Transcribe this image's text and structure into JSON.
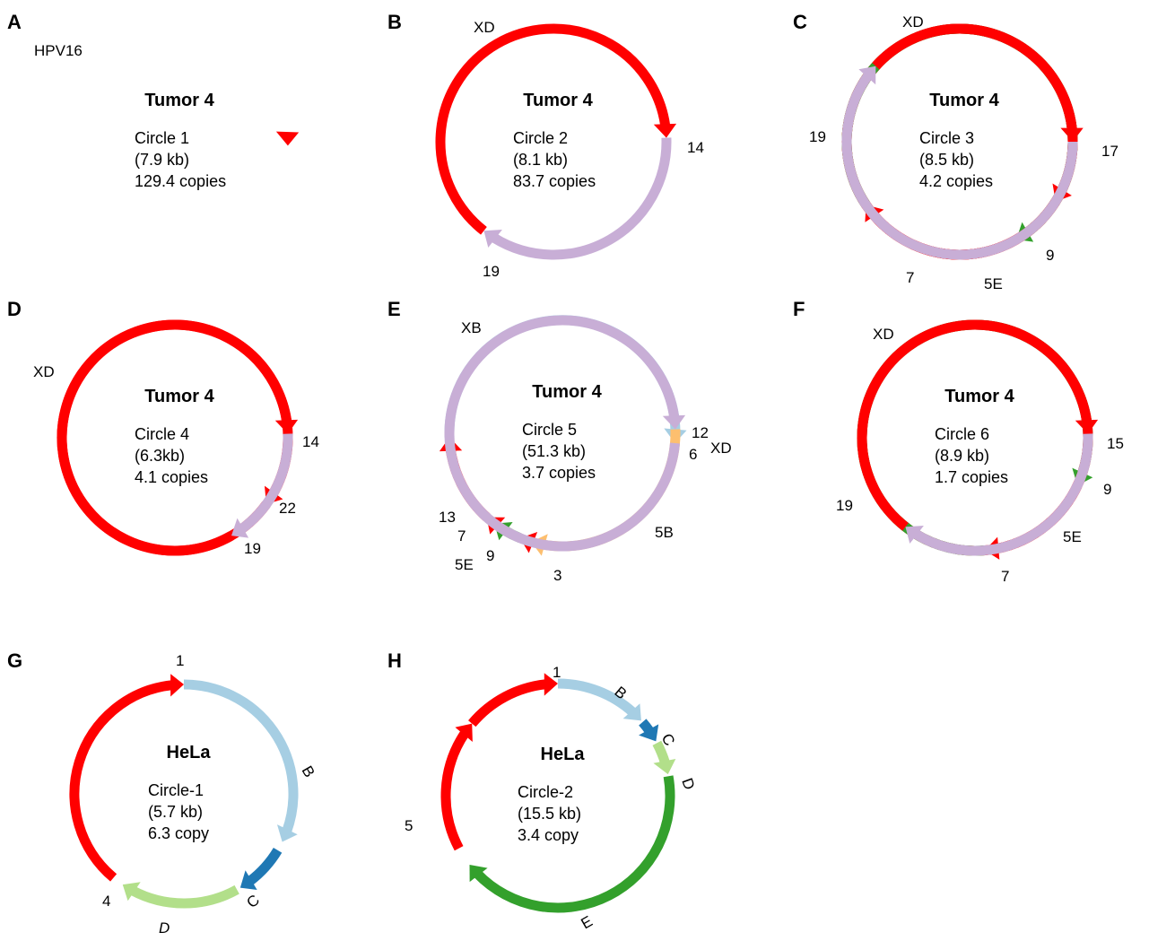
{
  "colors": {
    "red": "#ff0000",
    "lavender": "#c8aed6",
    "green": "#33a02c",
    "orange": "#fdbf6f",
    "light_blue": "#a6cee3",
    "dark_blue": "#1f78b4",
    "light_green": "#b2df8a"
  },
  "panels": [
    {
      "id": "A",
      "letter": "A",
      "title": "Tumor 4",
      "lines": [
        "Circle 1",
        "(7.9 kb)",
        "129.4 copies"
      ],
      "segments": [
        {
          "color": "red",
          "start": 88,
          "end": 92,
          "arrow": true
        }
      ],
      "labels": [
        {
          "text": "HPV16",
          "pos": "top-left"
        }
      ]
    },
    {
      "id": "B",
      "letter": "B",
      "title": "Tumor 4",
      "lines": [
        "Circle 2",
        "(8.1 kb)",
        "83.7 copies"
      ],
      "segments": [
        {
          "color": "red",
          "start": 218,
          "end": 88,
          "arrow": true
        },
        {
          "color": "lavender",
          "start": 88,
          "end": 218,
          "arrow": true
        }
      ],
      "labels": [
        {
          "text": "XD",
          "pos": "top-left"
        },
        {
          "text": "14",
          "pos": "right"
        },
        {
          "text": "19",
          "pos": "bottom-left"
        }
      ]
    },
    {
      "id": "C",
      "letter": "C",
      "title": "Tumor 4",
      "lines": [
        "Circle 3",
        "(8.5 kb)",
        "4.2 copies"
      ],
      "segments": [
        {
          "color": "red",
          "start": 122,
          "end": 90,
          "arrow": true
        },
        {
          "color": "red",
          "start": 150,
          "end": 122,
          "arrow": true
        },
        {
          "color": "green",
          "start": 236,
          "end": 150,
          "arrow": true
        },
        {
          "color": "red",
          "start": 312,
          "end": 236,
          "arrow": true
        },
        {
          "color": "lavender",
          "start": 90,
          "end": 312,
          "arrow": true
        }
      ],
      "labels": [
        {
          "text": "XD",
          "pos": "top"
        },
        {
          "text": "17",
          "pos": "right"
        },
        {
          "text": "9",
          "pos": "right-low"
        },
        {
          "text": "5E",
          "pos": "bottom"
        },
        {
          "text": "7",
          "pos": "bottom-left"
        },
        {
          "text": "19",
          "pos": "left"
        }
      ]
    },
    {
      "id": "D",
      "letter": "D",
      "title": "Tumor 4",
      "lines": [
        "Circle 4",
        "(6.3kb)",
        "4.1 copies"
      ],
      "segments": [
        {
          "color": "red",
          "start": 126,
          "end": 88,
          "arrow": true
        },
        {
          "color": "red",
          "start": 150,
          "end": 126,
          "arrow": true
        },
        {
          "color": "lavender",
          "start": 88,
          "end": 150,
          "arrow": true
        }
      ],
      "labels": [
        {
          "text": "XD",
          "pos": "left"
        },
        {
          "text": "14",
          "pos": "right"
        },
        {
          "text": "22",
          "pos": "right-low"
        },
        {
          "text": "19",
          "pos": "bottom-right"
        }
      ]
    },
    {
      "id": "E",
      "letter": "E",
      "title": "Tumor 4",
      "lines": [
        "Circle 5",
        "(51.3 kb)",
        "3.7 copies"
      ],
      "segments": [
        {
          "color": "light_blue",
          "start": 268,
          "end": 95,
          "arrow": true
        },
        {
          "color": "red",
          "start": 222,
          "end": 268,
          "arrow": true
        },
        {
          "color": "red",
          "start": 217,
          "end": 222,
          "arrow": true
        },
        {
          "color": "green",
          "start": 202,
          "end": 217,
          "arrow": true
        },
        {
          "color": "red",
          "start": 196,
          "end": 202,
          "arrow": true
        },
        {
          "color": "orange",
          "start": 88,
          "end": 196,
          "arrow": true
        },
        {
          "color": "lavender",
          "start": 95,
          "end": 88,
          "arrow": true
        }
      ],
      "labels": [
        {
          "text": "XB",
          "pos": "top-left"
        },
        {
          "text": "12",
          "pos": "right"
        },
        {
          "text": "XD",
          "pos": "far-right"
        },
        {
          "text": "6",
          "pos": "right-low"
        },
        {
          "text": "5B",
          "pos": "bottom-right"
        },
        {
          "text": "3",
          "pos": "bottom"
        },
        {
          "text": "13",
          "pos": "left"
        },
        {
          "text": "7",
          "pos": "left-low"
        },
        {
          "text": "9",
          "pos": "bottom-left-in"
        },
        {
          "text": "5E",
          "pos": "bottom-left"
        }
      ]
    },
    {
      "id": "F",
      "letter": "F",
      "title": "Tumor 4",
      "lines": [
        "Circle 6",
        "(8.9 kb)",
        "1.7 copies"
      ],
      "segments": [
        {
          "color": "red",
          "start": 115,
          "end": 88,
          "arrow": true
        },
        {
          "color": "green",
          "start": 175,
          "end": 115,
          "arrow": true
        },
        {
          "color": "red",
          "start": 218,
          "end": 175,
          "arrow": true
        },
        {
          "color": "lavender",
          "start": 88,
          "end": 218,
          "arrow": true
        }
      ],
      "labels": [
        {
          "text": "XD",
          "pos": "top-left"
        },
        {
          "text": "15",
          "pos": "right"
        },
        {
          "text": "9",
          "pos": "right-low"
        },
        {
          "text": "5E",
          "pos": "bottom-right"
        },
        {
          "text": "7",
          "pos": "bottom"
        },
        {
          "text": "19",
          "pos": "left"
        }
      ]
    },
    {
      "id": "G",
      "letter": "G",
      "title": "HeLa",
      "lines": [
        "Circle-1",
        "(5.7 kb)",
        "6.3 copy"
      ],
      "segments": [
        {
          "color": "light_blue",
          "start": 0,
          "end": 116,
          "arrow": true
        },
        {
          "color": "dark_blue",
          "start": 121,
          "end": 149,
          "arrow": true
        },
        {
          "color": "light_green",
          "start": 151,
          "end": 214,
          "arrow": true
        },
        {
          "color": "red",
          "start": 220,
          "end": 360,
          "arrow": true
        }
      ],
      "labels": [
        {
          "text": "1",
          "pos": "top"
        },
        {
          "text": "B",
          "pos": "right"
        },
        {
          "text": "C",
          "pos": "bottom-right"
        },
        {
          "text": "D",
          "pos": "bottom"
        },
        {
          "text": "4",
          "pos": "bottom-left"
        }
      ]
    },
    {
      "id": "H",
      "letter": "H",
      "title": "HeLa",
      "lines": [
        "Circle-2",
        "(15.5 kb)",
        "3.4 copy"
      ],
      "segments": [
        {
          "color": "light_blue",
          "start": 0,
          "end": 48,
          "arrow": true
        },
        {
          "color": "dark_blue",
          "start": 49,
          "end": 61,
          "arrow": true
        },
        {
          "color": "light_green",
          "start": 62,
          "end": 79,
          "arrow": true
        },
        {
          "color": "green",
          "start": 80,
          "end": 232,
          "arrow": true
        },
        {
          "color": "red",
          "start": 242,
          "end": 310,
          "arrow": true
        },
        {
          "color": "red",
          "start": 310,
          "end": 360,
          "arrow": true
        }
      ],
      "labels": [
        {
          "text": "1",
          "pos": "top"
        },
        {
          "text": "B",
          "pos": "top-right"
        },
        {
          "text": "C",
          "pos": "right-high"
        },
        {
          "text": "D",
          "pos": "right"
        },
        {
          "text": "E",
          "pos": "bottom"
        },
        {
          "text": "5",
          "pos": "left"
        }
      ]
    }
  ]
}
